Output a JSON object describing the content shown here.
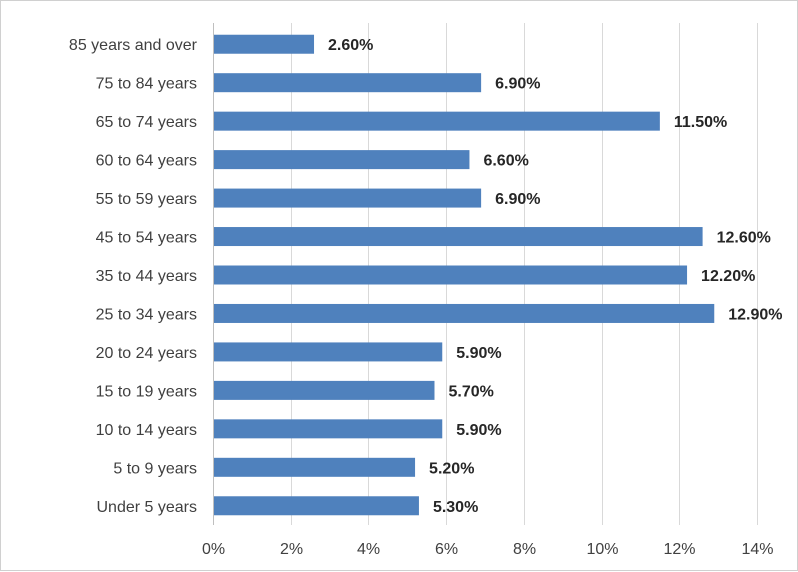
{
  "chart_data": {
    "type": "bar",
    "orientation": "horizontal",
    "categories": [
      "85 years and over",
      "75 to 84 years",
      "65 to 74 years",
      "60 to 64 years",
      "55 to 59 years",
      "45 to 54 years",
      "35 to 44 years",
      "25 to 34 years",
      "20 to 24 years",
      "15 to 19 years",
      "10 to 14 years",
      "5 to 9 years",
      "Under 5 years"
    ],
    "values": [
      2.6,
      6.9,
      11.5,
      6.6,
      6.9,
      12.6,
      12.2,
      12.9,
      5.9,
      5.7,
      5.9,
      5.2,
      5.3
    ],
    "value_labels": [
      "2.60%",
      "6.90%",
      "11.50%",
      "6.60%",
      "6.90%",
      "12.60%",
      "12.20%",
      "12.90%",
      "5.90%",
      "5.70%",
      "5.90%",
      "5.20%",
      "5.30%"
    ],
    "xlim": [
      0,
      14
    ],
    "x_ticks": [
      0,
      2,
      4,
      6,
      8,
      10,
      12,
      14
    ],
    "x_tick_labels": [
      "0%",
      "2%",
      "4%",
      "6%",
      "8%",
      "10%",
      "12%",
      "14%"
    ],
    "title": "",
    "xlabel": "",
    "ylabel": "",
    "grid": "vertical",
    "legend": "none",
    "bar_color": "#4f81bd"
  }
}
